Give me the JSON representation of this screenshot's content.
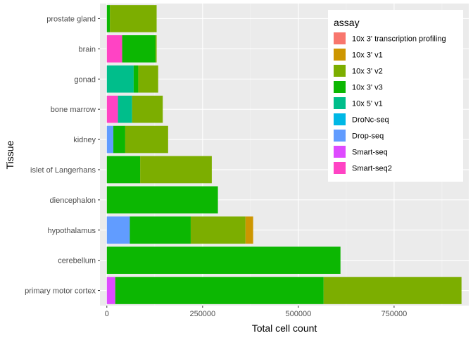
{
  "chart_data": {
    "type": "bar",
    "orientation": "horizontal",
    "stacked": true,
    "xlabel": "Total cell count",
    "ylabel": "Tissue",
    "xlim": [
      -18000,
      945000
    ],
    "x_ticks": [
      0,
      250000,
      500000,
      750000
    ],
    "x_tick_labels": [
      "0",
      "250000",
      "500000",
      "750000"
    ],
    "grid": true,
    "legend": {
      "title": "assay",
      "position": "top-right"
    },
    "categories": [
      "prostate gland",
      "brain",
      "gonad",
      "bone marrow",
      "kidney",
      "islet of Langerhans",
      "diencephalon",
      "hypothalamus",
      "cerebellum",
      "primary motor cortex"
    ],
    "series": [
      {
        "name": "10x 3' transcription profiling",
        "color": "#F8766D",
        "values": [
          0,
          0,
          0,
          0,
          0,
          0,
          0,
          0,
          0,
          0
        ]
      },
      {
        "name": "10x 3' v1",
        "color": "#CD9600",
        "values": [
          0,
          0,
          0,
          0,
          0,
          0,
          0,
          20000,
          0,
          0
        ]
      },
      {
        "name": "10x 3' v2",
        "color": "#7CAE00",
        "values": [
          122000,
          3000,
          52000,
          80000,
          112000,
          187000,
          0,
          143000,
          0,
          360000
        ]
      },
      {
        "name": "10x 3' v3",
        "color": "#0CB702",
        "values": [
          8000,
          87000,
          12000,
          0,
          31000,
          87000,
          290000,
          159000,
          610000,
          544000
        ]
      },
      {
        "name": "10x 5' v1",
        "color": "#00BE8B",
        "values": [
          0,
          0,
          70000,
          37000,
          0,
          0,
          0,
          0,
          0,
          0
        ]
      },
      {
        "name": "DroNc-seq",
        "color": "#00B8E5",
        "values": [
          0,
          0,
          0,
          0,
          0,
          0,
          0,
          0,
          0,
          0
        ]
      },
      {
        "name": "Drop-seq",
        "color": "#619CFF",
        "values": [
          0,
          0,
          0,
          0,
          17000,
          0,
          0,
          60000,
          0,
          0
        ]
      },
      {
        "name": "Smart-seq",
        "color": "#DE4AFF",
        "values": [
          0,
          0,
          0,
          0,
          0,
          0,
          0,
          0,
          0,
          22000
        ]
      },
      {
        "name": "Smart-seq2",
        "color": "#FF43C4",
        "values": [
          0,
          40000,
          0,
          29000,
          0,
          0,
          0,
          0,
          0,
          0
        ]
      }
    ]
  }
}
